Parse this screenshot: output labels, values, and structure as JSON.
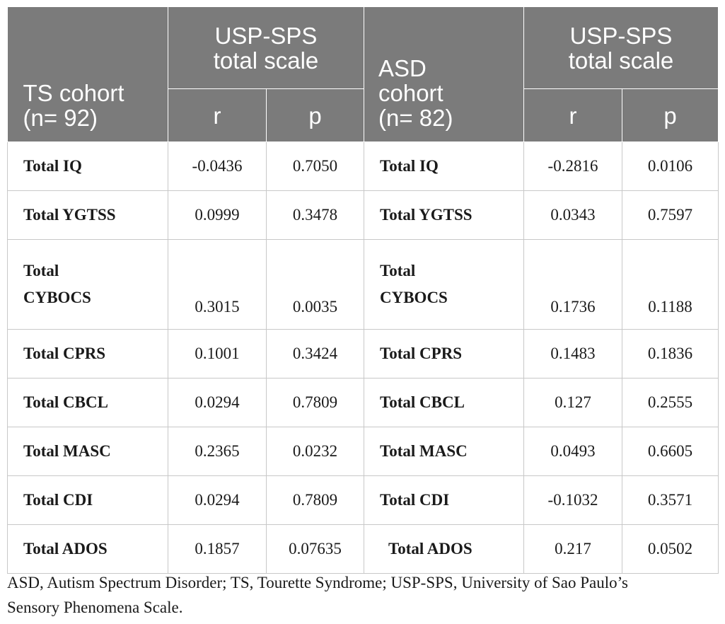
{
  "header": {
    "ts_cohort": [
      "TS cohort",
      "(n= 92)"
    ],
    "asd_cohort": [
      "ASD",
      "cohort",
      "(n= 82)"
    ],
    "scale": [
      "USP-SPS",
      "total scale"
    ],
    "r": "r",
    "p": "p"
  },
  "rows": [
    {
      "ts_label": "Total IQ",
      "ts_r": "-0.0436",
      "ts_p": "0.7050",
      "asd_label": "Total IQ",
      "asd_r": "-0.2816",
      "asd_p": "0.0106"
    },
    {
      "ts_label": "Total YGTSS",
      "ts_r": "0.0999",
      "ts_p": "0.3478",
      "asd_label": "Total YGTSS",
      "asd_r": "0.0343",
      "asd_p": "0.7597"
    },
    {
      "ts_label": [
        "Total",
        "CYBOCS"
      ],
      "ts_r": "0.3015",
      "ts_p": "0.0035",
      "asd_label": [
        "Total",
        "CYBOCS"
      ],
      "asd_r": "0.1736",
      "asd_p": "0.1188"
    },
    {
      "ts_label": "Total CPRS",
      "ts_r": "0.1001",
      "ts_p": "0.3424",
      "asd_label": "Total CPRS",
      "asd_r": "0.1483",
      "asd_p": "0.1836"
    },
    {
      "ts_label": "Total CBCL",
      "ts_r": "0.0294",
      "ts_p": "0.7809",
      "asd_label": "Total CBCL",
      "asd_r": "0.127",
      "asd_p": "0.2555"
    },
    {
      "ts_label": "Total MASC",
      "ts_r": "0.2365",
      "ts_p": "0.0232",
      "asd_label": "Total MASC",
      "asd_r": "0.0493",
      "asd_p": "0.6605"
    },
    {
      "ts_label": "Total CDI",
      "ts_r": "0.0294",
      "ts_p": "0.7809",
      "asd_label": "Total CDI",
      "asd_r": "-0.1032",
      "asd_p": "0.3571"
    },
    {
      "ts_label": "Total ADOS",
      "ts_r": "0.1857",
      "ts_p": "0.07635",
      "asd_label": "Total ADOS",
      "asd_r": "0.217",
      "asd_p": "0.0502"
    }
  ],
  "footnote": [
    "ASD, Autism Spectrum Disorder; TS, Tourette Syndrome; USP-SPS, University of Sao Paulo’s",
    "Sensory Phenomena Scale."
  ]
}
